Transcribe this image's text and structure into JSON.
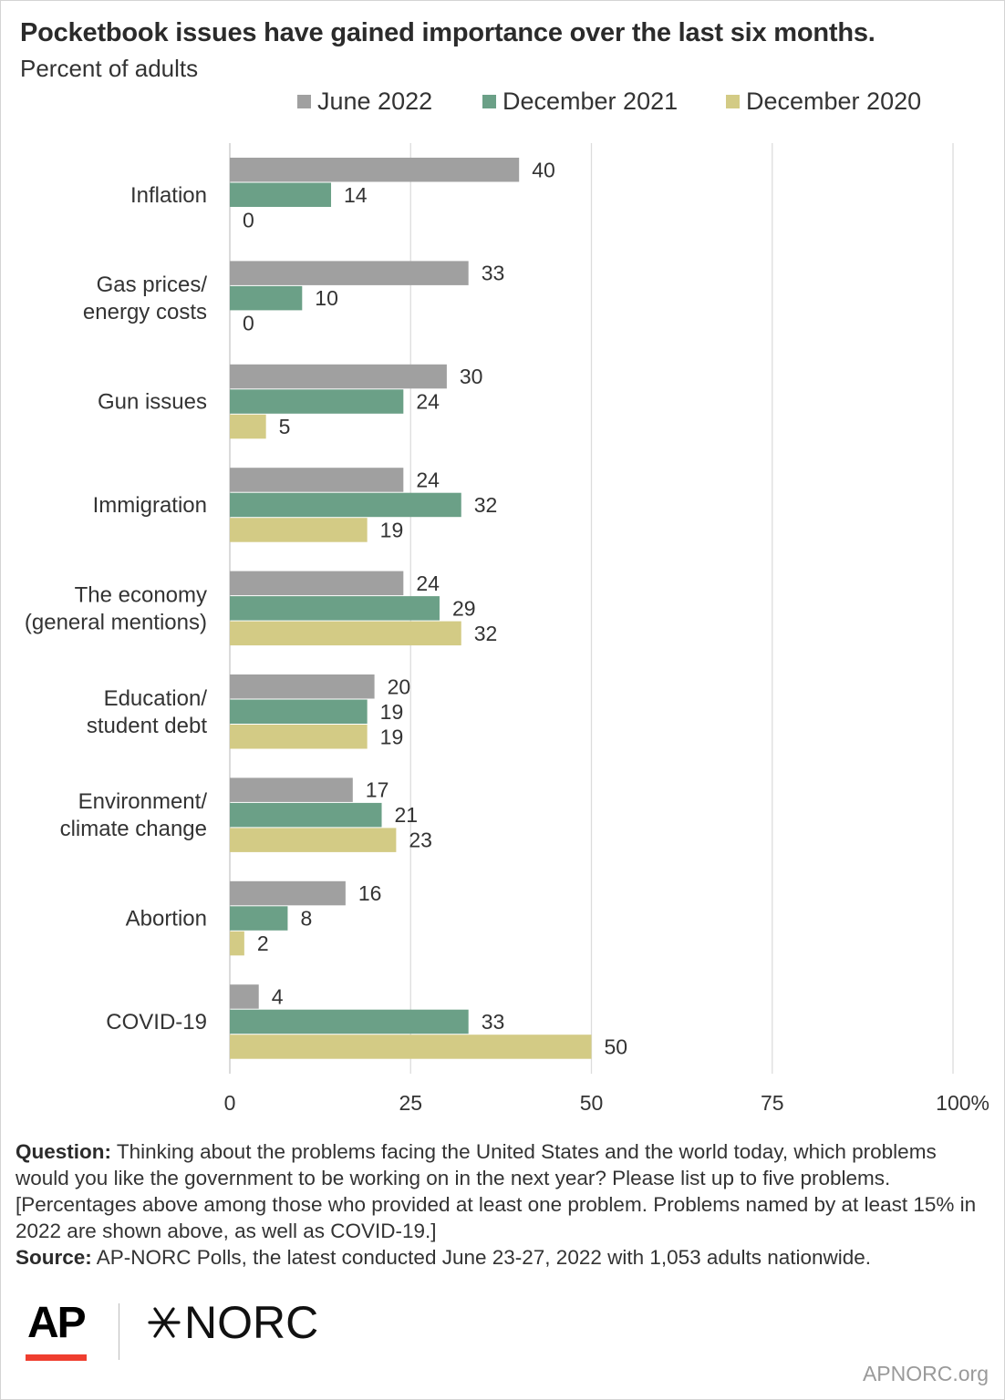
{
  "title": "Pocketbook issues have gained importance over the last six months.",
  "subtitle": "Percent of adults",
  "legend": [
    {
      "label": "June 2022",
      "color": "#a0a0a0"
    },
    {
      "label": "December 2021",
      "color": "#6ba087"
    },
    {
      "label": "December 2020",
      "color": "#d3cb85"
    }
  ],
  "chart_data": {
    "type": "bar",
    "orientation": "horizontal",
    "categories": [
      "Inflation",
      "Gas prices/\nenergy costs",
      "Gun issues",
      "Immigration",
      "The economy\n(general mentions)",
      "Education/\nstudent debt",
      "Environment/\nclimate change",
      "Abortion",
      "COVID-19"
    ],
    "series": [
      {
        "name": "June 2022",
        "color": "#a0a0a0",
        "values": [
          40,
          33,
          30,
          24,
          24,
          20,
          17,
          16,
          4
        ]
      },
      {
        "name": "December 2021",
        "color": "#6ba087",
        "values": [
          14,
          10,
          24,
          32,
          29,
          19,
          21,
          8,
          33
        ]
      },
      {
        "name": "December 2020",
        "color": "#d3cb85",
        "values": [
          0,
          0,
          5,
          19,
          32,
          19,
          23,
          2,
          50
        ]
      }
    ],
    "xlim": [
      0,
      100
    ],
    "xticks": [
      0,
      25,
      50,
      75,
      100
    ],
    "xtick_labels": [
      "0",
      "25",
      "50",
      "75",
      "100%"
    ],
    "grid": true,
    "legend_position": "top"
  },
  "footnote": {
    "question_label": "Question:",
    "question_text": " Thinking about the problems facing the United States and the world today, which problems would you like the government to be working on in the next year? Please list up to five problems. [Percentages above among those who provided at least one problem. Problems named by at least 15% in 2022 are shown above, as well as COVID-19.]",
    "source_label": "Source:",
    "source_text": "  AP-NORC Polls, the latest conducted June 23-27, 2022 with 1,053 adults nationwide."
  },
  "logos": {
    "ap": "AP",
    "norc": "NORC"
  },
  "site": "APNORC.org"
}
